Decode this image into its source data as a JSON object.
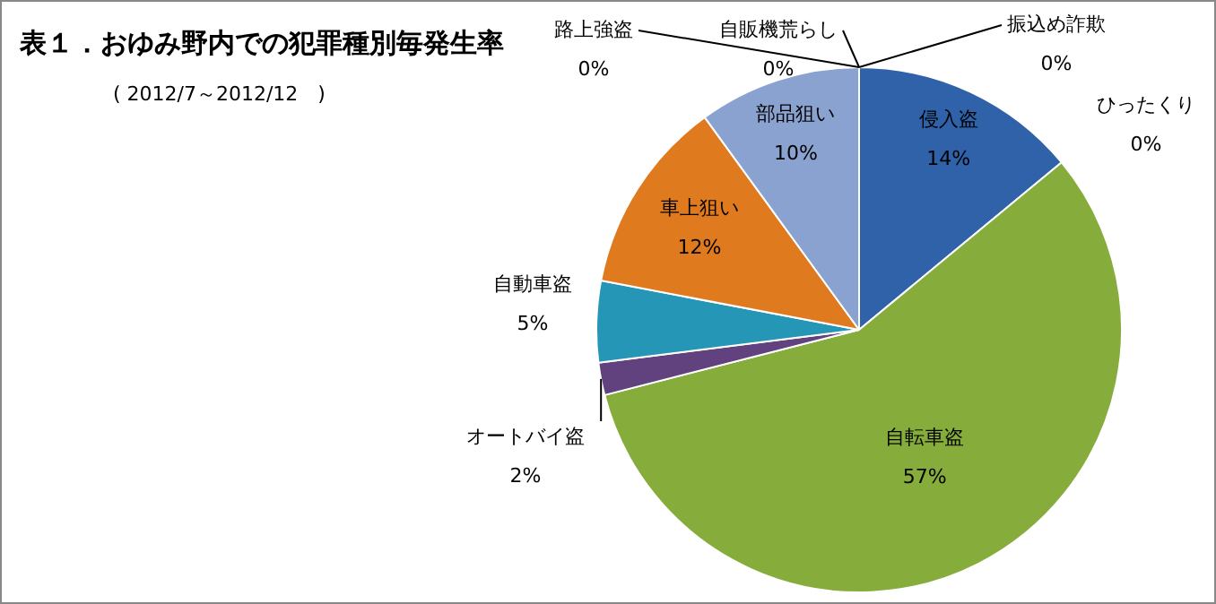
{
  "chart_data": {
    "type": "pie",
    "title": "表１．おゆみ野内での犯罪種別毎発生率",
    "subtitle": "( 2012/7～2012/12　)",
    "categories": [
      "侵入盗",
      "ひったくり",
      "自転車盗",
      "オートバイ盗",
      "自動車盗",
      "車上狙い",
      "部品狙い",
      "路上強盗",
      "自販機荒らし",
      "振込め詐欺"
    ],
    "values": [
      14,
      0,
      57,
      2,
      5,
      12,
      10,
      0,
      0,
      0
    ],
    "colors": [
      "#2f62a8",
      "#c0504d",
      "#86ad3c",
      "#61427f",
      "#2596b5",
      "#e07a1f",
      "#8aa2cf",
      "#4bacc6",
      "#f79646",
      "#9bbb59"
    ],
    "value_labels": [
      "14%",
      "0%",
      "57%",
      "2%",
      "5%",
      "12%",
      "10%",
      "0%",
      "0%",
      "0%"
    ],
    "legend": false
  }
}
